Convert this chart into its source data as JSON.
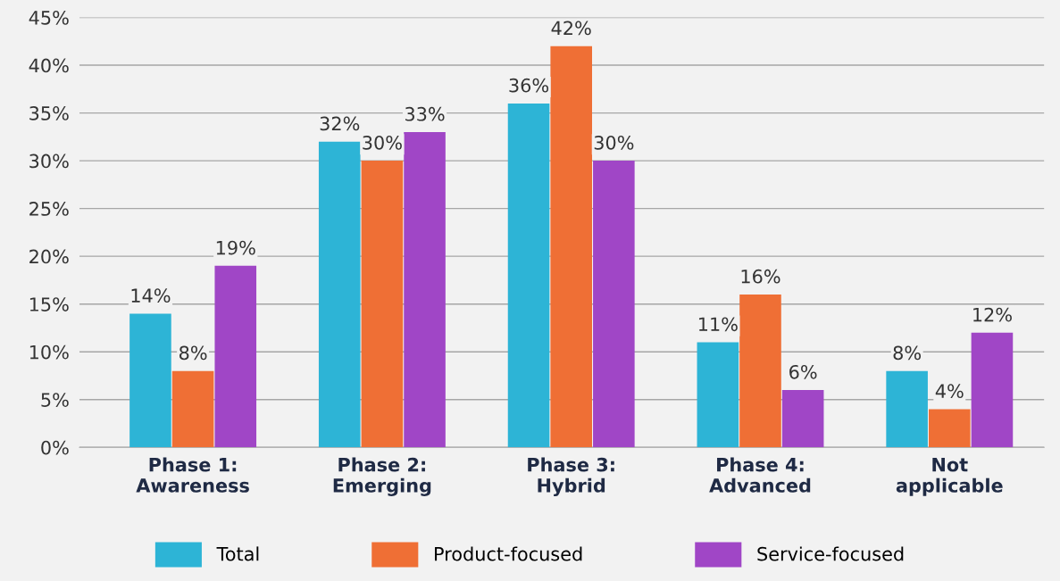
{
  "chart_data": {
    "type": "bar",
    "categories": [
      "Phase 1:\nAwareness",
      "Phase 2:\nEmerging",
      "Phase 3:\nHybrid",
      "Phase 4:\nAdvanced",
      "Not\napplicable"
    ],
    "series": [
      {
        "name": "Total",
        "color": "#2db4d6",
        "values": [
          14,
          32,
          36,
          11,
          8
        ],
        "value_labels": [
          "14%",
          "32%",
          "36%",
          "11%",
          "8%"
        ]
      },
      {
        "name": "Product-focused",
        "color": "#ef6f35",
        "values": [
          8,
          30,
          42,
          16,
          4
        ],
        "value_labels": [
          "8%",
          "30%",
          "42%",
          "16%",
          "4%"
        ]
      },
      {
        "name": "Service-focused",
        "color": "#a046c6",
        "values": [
          19,
          33,
          30,
          6,
          12
        ],
        "value_labels": [
          "19%",
          "33%",
          "30%",
          "6%",
          "12%"
        ]
      }
    ],
    "ylim": [
      0,
      45
    ],
    "yticks": [
      {
        "value": 0,
        "label": "0%"
      },
      {
        "value": 5,
        "label": "5%"
      },
      {
        "value": 10,
        "label": "10%"
      },
      {
        "value": 15,
        "label": "15%"
      },
      {
        "value": 20,
        "label": "20%"
      },
      {
        "value": 25,
        "label": "25%"
      },
      {
        "value": 30,
        "label": "30%"
      },
      {
        "value": 35,
        "label": "35%"
      },
      {
        "value": 40,
        "label": "40%"
      },
      {
        "value": 45,
        "label": "45%"
      }
    ],
    "grid": "y",
    "legend": "bottom"
  }
}
